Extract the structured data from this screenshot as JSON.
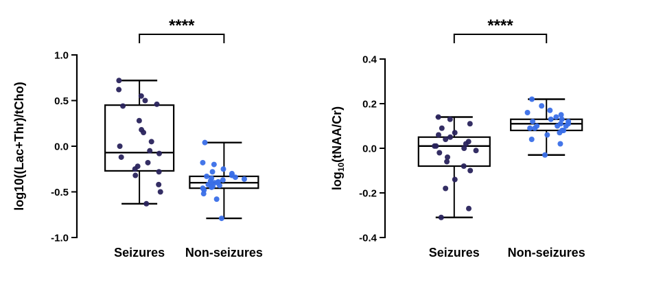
{
  "figure": {
    "background": "#ffffff",
    "significance_label": "****"
  },
  "chart_data": [
    {
      "type": "box",
      "title": "",
      "xlabel": "",
      "categories": [
        "Seizures",
        "Non-seizures"
      ],
      "ylabel_parts": [
        {
          "text": "log10((Lac+Thr)/tCho)",
          "sub": false
        }
      ],
      "ylim": [
        -1.0,
        1.0
      ],
      "grid": false,
      "legend": "none",
      "significance": "****",
      "yticks": [
        {
          "v": 1.0,
          "label": "1.0"
        },
        {
          "v": 0.5,
          "label": "0.5"
        },
        {
          "v": 0.0,
          "label": "0.0"
        },
        {
          "v": -0.5,
          "label": "-0.5"
        },
        {
          "v": -1.0,
          "label": "-1.0"
        }
      ],
      "series": [
        {
          "name": "Seizures",
          "color": "#29235C",
          "box": {
            "min": -0.63,
            "q1": -0.27,
            "median": -0.07,
            "q3": 0.45,
            "max": 0.72
          },
          "points": [
            0.72,
            0.62,
            0.55,
            0.5,
            0.46,
            0.44,
            0.28,
            0.18,
            0.15,
            0.05,
            0.0,
            -0.05,
            -0.08,
            -0.12,
            -0.18,
            -0.22,
            -0.25,
            -0.28,
            -0.32,
            -0.42,
            -0.5,
            -0.63
          ]
        },
        {
          "name": "Non-seizures",
          "color": "#3A6FE8",
          "box": {
            "min": -0.79,
            "q1": -0.46,
            "median": -0.4,
            "q3": -0.33,
            "max": 0.04
          },
          "points": [
            0.04,
            -0.18,
            -0.2,
            -0.25,
            -0.28,
            -0.3,
            -0.32,
            -0.33,
            -0.34,
            -0.35,
            -0.36,
            -0.37,
            -0.38,
            -0.39,
            -0.4,
            -0.4,
            -0.41,
            -0.42,
            -0.43,
            -0.44,
            -0.45,
            -0.46,
            -0.48,
            -0.52,
            -0.58,
            -0.79
          ]
        }
      ]
    },
    {
      "type": "box",
      "title": "",
      "xlabel": "",
      "categories": [
        "Seizures",
        "Non-seizures"
      ],
      "ylabel_parts": [
        {
          "text": "log",
          "sub": false
        },
        {
          "text": "10",
          "sub": true
        },
        {
          "text": "(tNAA/Cr)",
          "sub": false
        }
      ],
      "ylim": [
        -0.4,
        0.4
      ],
      "grid": false,
      "legend": "none",
      "significance": "****",
      "yticks": [
        {
          "v": 0.4,
          "label": "0.4"
        },
        {
          "v": 0.2,
          "label": "0.2"
        },
        {
          "v": 0.0,
          "label": "0.0"
        },
        {
          "v": -0.2,
          "label": "-0.2"
        },
        {
          "v": -0.4,
          "label": "-0.4"
        }
      ],
      "series": [
        {
          "name": "Seizures",
          "color": "#29235C",
          "box": {
            "min": -0.31,
            "q1": -0.08,
            "median": 0.01,
            "q3": 0.05,
            "max": 0.14
          },
          "points": [
            0.14,
            0.13,
            0.11,
            0.09,
            0.07,
            0.06,
            0.05,
            0.04,
            0.03,
            0.02,
            0.01,
            0.01,
            0.0,
            -0.01,
            -0.02,
            -0.04,
            -0.06,
            -0.08,
            -0.1,
            -0.14,
            -0.18,
            -0.27,
            -0.31
          ]
        },
        {
          "name": "Non-seizures",
          "color": "#3A6FE8",
          "box": {
            "min": -0.03,
            "q1": 0.08,
            "median": 0.11,
            "q3": 0.13,
            "max": 0.22
          },
          "points": [
            0.22,
            0.19,
            0.17,
            0.16,
            0.15,
            0.14,
            0.13,
            0.13,
            0.12,
            0.12,
            0.11,
            0.11,
            0.1,
            0.1,
            0.1,
            0.09,
            0.09,
            0.08,
            0.08,
            0.07,
            0.06,
            0.04,
            0.02,
            -0.03
          ]
        }
      ]
    }
  ]
}
